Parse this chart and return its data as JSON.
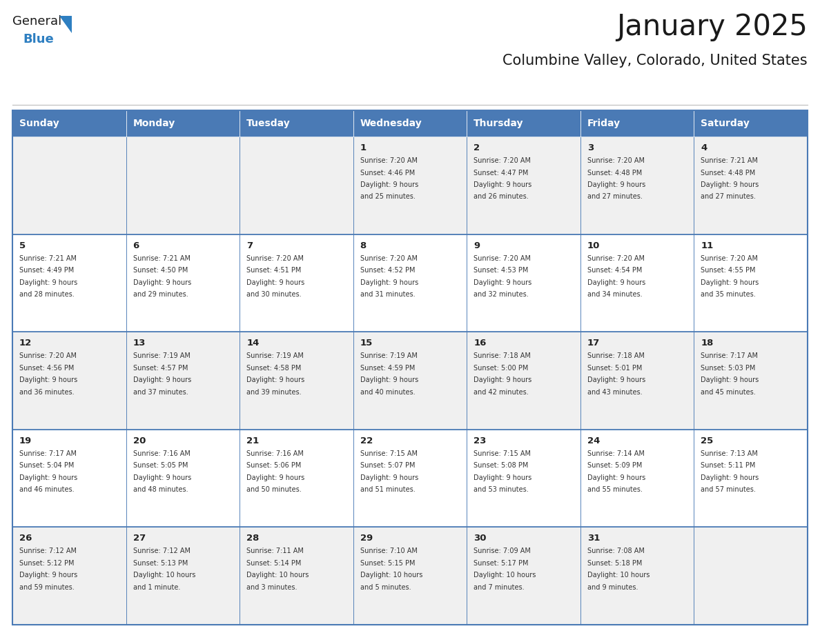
{
  "title": "January 2025",
  "subtitle": "Columbine Valley, Colorado, United States",
  "days_of_week": [
    "Sunday",
    "Monday",
    "Tuesday",
    "Wednesday",
    "Thursday",
    "Friday",
    "Saturday"
  ],
  "header_bg": "#4a7ab5",
  "header_text_color": "#ffffff",
  "cell_bg_odd": "#f0f0f0",
  "cell_bg_even": "#ffffff",
  "border_color": "#4a7ab5",
  "day_number_color": "#222222",
  "text_color": "#333333",
  "title_color": "#1a1a1a",
  "subtitle_color": "#1a1a1a",
  "logo_general_color": "#1a1a1a",
  "logo_blue_color": "#2e7fc1",
  "week_rows": [
    {
      "days": [
        {
          "date": null,
          "sunrise": null,
          "sunset": null,
          "daylight_line1": null,
          "daylight_line2": null
        },
        {
          "date": null,
          "sunrise": null,
          "sunset": null,
          "daylight_line1": null,
          "daylight_line2": null
        },
        {
          "date": null,
          "sunrise": null,
          "sunset": null,
          "daylight_line1": null,
          "daylight_line2": null
        },
        {
          "date": "1",
          "sunrise": "7:20 AM",
          "sunset": "4:46 PM",
          "daylight_line1": "Daylight: 9 hours",
          "daylight_line2": "and 25 minutes."
        },
        {
          "date": "2",
          "sunrise": "7:20 AM",
          "sunset": "4:47 PM",
          "daylight_line1": "Daylight: 9 hours",
          "daylight_line2": "and 26 minutes."
        },
        {
          "date": "3",
          "sunrise": "7:20 AM",
          "sunset": "4:48 PM",
          "daylight_line1": "Daylight: 9 hours",
          "daylight_line2": "and 27 minutes."
        },
        {
          "date": "4",
          "sunrise": "7:21 AM",
          "sunset": "4:48 PM",
          "daylight_line1": "Daylight: 9 hours",
          "daylight_line2": "and 27 minutes."
        }
      ]
    },
    {
      "days": [
        {
          "date": "5",
          "sunrise": "7:21 AM",
          "sunset": "4:49 PM",
          "daylight_line1": "Daylight: 9 hours",
          "daylight_line2": "and 28 minutes."
        },
        {
          "date": "6",
          "sunrise": "7:21 AM",
          "sunset": "4:50 PM",
          "daylight_line1": "Daylight: 9 hours",
          "daylight_line2": "and 29 minutes."
        },
        {
          "date": "7",
          "sunrise": "7:20 AM",
          "sunset": "4:51 PM",
          "daylight_line1": "Daylight: 9 hours",
          "daylight_line2": "and 30 minutes."
        },
        {
          "date": "8",
          "sunrise": "7:20 AM",
          "sunset": "4:52 PM",
          "daylight_line1": "Daylight: 9 hours",
          "daylight_line2": "and 31 minutes."
        },
        {
          "date": "9",
          "sunrise": "7:20 AM",
          "sunset": "4:53 PM",
          "daylight_line1": "Daylight: 9 hours",
          "daylight_line2": "and 32 minutes."
        },
        {
          "date": "10",
          "sunrise": "7:20 AM",
          "sunset": "4:54 PM",
          "daylight_line1": "Daylight: 9 hours",
          "daylight_line2": "and 34 minutes."
        },
        {
          "date": "11",
          "sunrise": "7:20 AM",
          "sunset": "4:55 PM",
          "daylight_line1": "Daylight: 9 hours",
          "daylight_line2": "and 35 minutes."
        }
      ]
    },
    {
      "days": [
        {
          "date": "12",
          "sunrise": "7:20 AM",
          "sunset": "4:56 PM",
          "daylight_line1": "Daylight: 9 hours",
          "daylight_line2": "and 36 minutes."
        },
        {
          "date": "13",
          "sunrise": "7:19 AM",
          "sunset": "4:57 PM",
          "daylight_line1": "Daylight: 9 hours",
          "daylight_line2": "and 37 minutes."
        },
        {
          "date": "14",
          "sunrise": "7:19 AM",
          "sunset": "4:58 PM",
          "daylight_line1": "Daylight: 9 hours",
          "daylight_line2": "and 39 minutes."
        },
        {
          "date": "15",
          "sunrise": "7:19 AM",
          "sunset": "4:59 PM",
          "daylight_line1": "Daylight: 9 hours",
          "daylight_line2": "and 40 minutes."
        },
        {
          "date": "16",
          "sunrise": "7:18 AM",
          "sunset": "5:00 PM",
          "daylight_line1": "Daylight: 9 hours",
          "daylight_line2": "and 42 minutes."
        },
        {
          "date": "17",
          "sunrise": "7:18 AM",
          "sunset": "5:01 PM",
          "daylight_line1": "Daylight: 9 hours",
          "daylight_line2": "and 43 minutes."
        },
        {
          "date": "18",
          "sunrise": "7:17 AM",
          "sunset": "5:03 PM",
          "daylight_line1": "Daylight: 9 hours",
          "daylight_line2": "and 45 minutes."
        }
      ]
    },
    {
      "days": [
        {
          "date": "19",
          "sunrise": "7:17 AM",
          "sunset": "5:04 PM",
          "daylight_line1": "Daylight: 9 hours",
          "daylight_line2": "and 46 minutes."
        },
        {
          "date": "20",
          "sunrise": "7:16 AM",
          "sunset": "5:05 PM",
          "daylight_line1": "Daylight: 9 hours",
          "daylight_line2": "and 48 minutes."
        },
        {
          "date": "21",
          "sunrise": "7:16 AM",
          "sunset": "5:06 PM",
          "daylight_line1": "Daylight: 9 hours",
          "daylight_line2": "and 50 minutes."
        },
        {
          "date": "22",
          "sunrise": "7:15 AM",
          "sunset": "5:07 PM",
          "daylight_line1": "Daylight: 9 hours",
          "daylight_line2": "and 51 minutes."
        },
        {
          "date": "23",
          "sunrise": "7:15 AM",
          "sunset": "5:08 PM",
          "daylight_line1": "Daylight: 9 hours",
          "daylight_line2": "and 53 minutes."
        },
        {
          "date": "24",
          "sunrise": "7:14 AM",
          "sunset": "5:09 PM",
          "daylight_line1": "Daylight: 9 hours",
          "daylight_line2": "and 55 minutes."
        },
        {
          "date": "25",
          "sunrise": "7:13 AM",
          "sunset": "5:11 PM",
          "daylight_line1": "Daylight: 9 hours",
          "daylight_line2": "and 57 minutes."
        }
      ]
    },
    {
      "days": [
        {
          "date": "26",
          "sunrise": "7:12 AM",
          "sunset": "5:12 PM",
          "daylight_line1": "Daylight: 9 hours",
          "daylight_line2": "and 59 minutes."
        },
        {
          "date": "27",
          "sunrise": "7:12 AM",
          "sunset": "5:13 PM",
          "daylight_line1": "Daylight: 10 hours",
          "daylight_line2": "and 1 minute."
        },
        {
          "date": "28",
          "sunrise": "7:11 AM",
          "sunset": "5:14 PM",
          "daylight_line1": "Daylight: 10 hours",
          "daylight_line2": "and 3 minutes."
        },
        {
          "date": "29",
          "sunrise": "7:10 AM",
          "sunset": "5:15 PM",
          "daylight_line1": "Daylight: 10 hours",
          "daylight_line2": "and 5 minutes."
        },
        {
          "date": "30",
          "sunrise": "7:09 AM",
          "sunset": "5:17 PM",
          "daylight_line1": "Daylight: 10 hours",
          "daylight_line2": "and 7 minutes."
        },
        {
          "date": "31",
          "sunrise": "7:08 AM",
          "sunset": "5:18 PM",
          "daylight_line1": "Daylight: 10 hours",
          "daylight_line2": "and 9 minutes."
        },
        {
          "date": null,
          "sunrise": null,
          "sunset": null,
          "daylight_line1": null,
          "daylight_line2": null
        }
      ]
    }
  ]
}
